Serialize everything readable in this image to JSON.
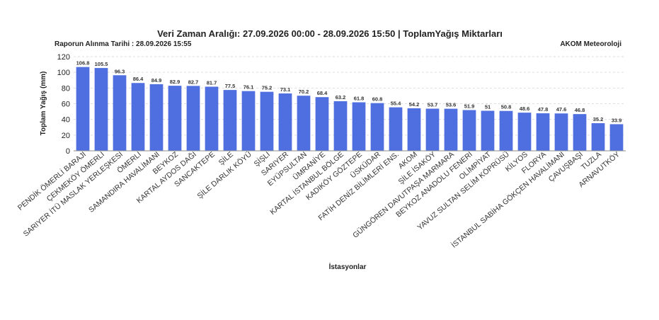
{
  "header": {
    "title": "Veri Zaman Aralığı: 27.09.2026 00:00 - 28.09.2026 15:50 | ToplamYağış Miktarları",
    "report_date": "Raporun Alınma Tarihi : 28.09.2026 15:55",
    "source": "AKOM Meteoroloji"
  },
  "colors": {
    "bar": "#4f6fe0",
    "grid": "#dddddd",
    "axis": "#888888"
  },
  "chart_data": {
    "type": "bar",
    "title": "Veri Zaman Aralığı: 27.09.2026 00:00 - 28.09.2026 15:50 | ToplamYağış Miktarları",
    "xlabel": "İstasyonlar",
    "ylabel": "Toplam Yağış (mm)",
    "ylim": [
      0,
      120
    ],
    "yticks": [
      0,
      20,
      40,
      60,
      80,
      100,
      120
    ],
    "grid": true,
    "categories": [
      "PENDİK ÖMERLİ BARAJI",
      "ÇEKMEKÖY ÖMERLİ",
      "SARIYER İTÜ MASLAK YERLEŞKESİ",
      "ÖMERLİ",
      "SAMANDIRA HAVALİMANI",
      "BEYKOZ",
      "KARTAL AYDOS DAĞI",
      "SANCAKTEPE",
      "ŞİLE",
      "ŞİLE DARLIK KÖYÜ",
      "ŞİŞLİ",
      "SARIYER",
      "EYÜPSULTAN",
      "ÜMRANİYE",
      "KARTAL İSTANBUL BÖLGE",
      "KADIKÖY GÖZTEPE",
      "ÜSKÜDAR",
      "FATİH DENİZ BİLİMLERİ ENS.",
      "AKOM",
      "ŞİLE İSAKÖY",
      "GÜNGÖREN DAVUTPAŞA MARMARA",
      "BEYKOZ ANADOLU FENERİ",
      "OLİMPİYAT",
      "YAVUZ SULTAN SELİM KÖPRÜSÜ",
      "KİLYOS",
      "FLORYA",
      "İSTANBUL SABİHA GÖKÇEN HAVALİMANI",
      "ÇAVUŞBAŞI",
      "TUZLA",
      "ARNAVUTKÖY"
    ],
    "values": [
      106.8,
      105.5,
      96.3,
      86.4,
      84.9,
      82.9,
      82.7,
      81.7,
      77.5,
      76.1,
      75.2,
      73.1,
      70.2,
      68.4,
      63.2,
      61.8,
      60.8,
      55.4,
      54.2,
      53.7,
      53.6,
      51.9,
      51,
      50.8,
      48.6,
      47.8,
      47.6,
      46.8,
      35.2,
      33.9
    ],
    "data_labels": [
      "106.8",
      "105.5",
      "96.3",
      "86.4",
      "84.9",
      "82.9",
      "82.7",
      "81.7",
      "77.5",
      "76.1",
      "75.2",
      "73.1",
      "70.2",
      "68.4",
      "63.2",
      "61.8",
      "60.8",
      "55.4",
      "54.2",
      "53.7",
      "53.6",
      "51.9",
      "51",
      "50.8",
      "48.6",
      "47.8",
      "47.6",
      "46.8",
      "35.2",
      "33.9"
    ]
  }
}
